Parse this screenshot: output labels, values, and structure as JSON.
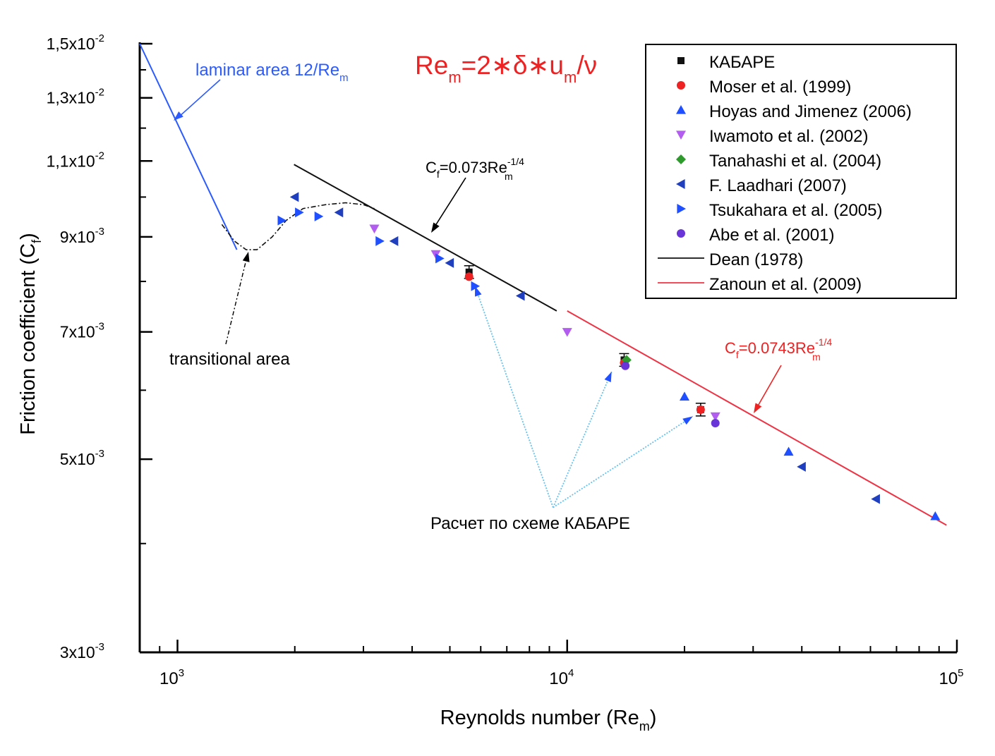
{
  "chart_data": {
    "type": "scatter",
    "x_scale": "log",
    "y_scale": "log",
    "xlim": [
      800,
      100000
    ],
    "ylim": [
      0.003,
      0.015
    ],
    "xlabel": "Reynolds number (Re_m)",
    "ylabel": "Friction coefficient (C_f)",
    "x_ticks": [
      {
        "value": 1000,
        "base": "10",
        "exp": "3"
      },
      {
        "value": 10000,
        "base": "10",
        "exp": "4"
      },
      {
        "value": 100000,
        "base": "10",
        "exp": "5"
      }
    ],
    "y_ticks": [
      {
        "value": 0.015,
        "mant": "1,5x10",
        "exp": "-2"
      },
      {
        "value": 0.013,
        "mant": "1,3x10",
        "exp": "-2"
      },
      {
        "value": 0.011,
        "mant": "1,1x10",
        "exp": "-2"
      },
      {
        "value": 0.009,
        "mant": "9x10",
        "exp": "-3"
      },
      {
        "value": 0.007,
        "mant": "7x10",
        "exp": "-3"
      },
      {
        "value": 0.005,
        "mant": "5x10",
        "exp": "-3"
      },
      {
        "value": 0.003,
        "mant": "3x10",
        "exp": "-3"
      }
    ],
    "y_minor_ticks": [
      0.004,
      0.006,
      0.008,
      0.01,
      0.012,
      0.014
    ],
    "legend_position": "top-right",
    "legend": [
      {
        "label": "КАБАРЕ",
        "marker": "square",
        "color": "#111111"
      },
      {
        "label": "Moser et al. (1999)",
        "marker": "circle",
        "color": "#ee2222"
      },
      {
        "label": "Hoyas and Jimenez (2006)",
        "marker": "triangle-up",
        "color": "#1f4fff"
      },
      {
        "label": "Iwamoto et al. (2002)",
        "marker": "triangle-down",
        "color": "#b25cf0"
      },
      {
        "label": "Tanahashi et al. (2004)",
        "marker": "diamond",
        "color": "#2e9a2e"
      },
      {
        "label": "F. Laadhari (2007)",
        "marker": "triangle-left",
        "color": "#1f3fbf"
      },
      {
        "label": "Tsukahara et al. (2005)",
        "marker": "triangle-right",
        "color": "#1f4fff"
      },
      {
        "label": "Abe et al. (2001)",
        "marker": "circle",
        "color": "#6a35d8"
      },
      {
        "label": "Dean (1978)",
        "marker": "line",
        "color": "#111111"
      },
      {
        "label": "Zanoun et al. (2009)",
        "marker": "line",
        "color": "#ee3344"
      }
    ],
    "series": [
      {
        "name": "КАБАРЕ",
        "marker": "square",
        "color": "#111111",
        "error_bars": true,
        "points": [
          [
            5600,
            0.0082
          ],
          [
            14000,
            0.0065
          ],
          [
            22000,
            0.0057
          ]
        ]
      },
      {
        "name": "Moser et al. (1999)",
        "marker": "circle",
        "color": "#ee2222",
        "points": [
          [
            5600,
            0.0081
          ],
          [
            14000,
            0.00645
          ],
          [
            22000,
            0.0057
          ]
        ]
      },
      {
        "name": "Hoyas and Jimenez (2006)",
        "marker": "triangle-up",
        "color": "#1f4fff",
        "points": [
          [
            20000,
            0.0059
          ],
          [
            37000,
            0.0051
          ],
          [
            88000,
            0.0043
          ]
        ]
      },
      {
        "name": "Iwamoto et al. (2002)",
        "marker": "triangle-down",
        "color": "#b25cf0",
        "points": [
          [
            3200,
            0.0092
          ],
          [
            4600,
            0.0086
          ],
          [
            10000,
            0.007
          ],
          [
            24000,
            0.0056
          ]
        ]
      },
      {
        "name": "Tanahashi et al. (2004)",
        "marker": "diamond",
        "color": "#2e9a2e",
        "points": [
          [
            14200,
            0.0065
          ]
        ]
      },
      {
        "name": "F. Laadhari (2007)",
        "marker": "triangle-left",
        "color": "#1f3fbf",
        "points": [
          [
            2000,
            0.01
          ],
          [
            2600,
            0.0096
          ],
          [
            3600,
            0.0089
          ],
          [
            5000,
            0.0084
          ],
          [
            7600,
            0.0077
          ],
          [
            40000,
            0.0049
          ],
          [
            62000,
            0.0045
          ]
        ]
      },
      {
        "name": "Tsukahara et al. (2005)",
        "marker": "triangle-right",
        "color": "#1f4fff",
        "points": [
          [
            1850,
            0.0094
          ],
          [
            2050,
            0.0096
          ],
          [
            2300,
            0.0095
          ],
          [
            3300,
            0.0089
          ],
          [
            4700,
            0.0085
          ],
          [
            5800,
            0.0079
          ]
        ]
      },
      {
        "name": "Abe et al. (2001)",
        "marker": "circle",
        "color": "#6a35d8",
        "points": [
          [
            14100,
            0.0064
          ],
          [
            24000,
            0.0055
          ]
        ]
      },
      {
        "name": "Dean (1978)",
        "type": "line",
        "color": "#111111",
        "points": [
          [
            1990,
            0.0109
          ],
          [
            9400,
            0.0074
          ]
        ]
      },
      {
        "name": "Zanoun et al. (2009)",
        "type": "line",
        "color": "#ee3344",
        "points": [
          [
            10000,
            0.0074
          ],
          [
            94000,
            0.0042
          ]
        ]
      }
    ],
    "laminar_line": {
      "color": "#2b5bff",
      "points": [
        [
          800,
          0.015
        ],
        [
          1420,
          0.0087
        ]
      ]
    },
    "transitional_curve": {
      "color": "#111111",
      "points": [
        [
          1300,
          0.0093
        ],
        [
          1400,
          0.0089
        ],
        [
          1500,
          0.0087
        ],
        [
          1600,
          0.0087
        ],
        [
          1750,
          0.009
        ],
        [
          1900,
          0.0094
        ],
        [
          2100,
          0.0097
        ],
        [
          2400,
          0.0098
        ],
        [
          2700,
          0.00985
        ],
        [
          3000,
          0.0098
        ],
        [
          3200,
          0.0097
        ]
      ]
    },
    "kabare_pointer": {
      "color": "#66c2ee",
      "apex": [
        9200,
        0.0044
      ],
      "targets": [
        [
          5800,
          0.0079
        ],
        [
          13000,
          0.0063
        ],
        [
          21000,
          0.0056
        ]
      ]
    },
    "annotations": {
      "laminar": {
        "pre": "laminar area 12/Re",
        "sub": "m"
      },
      "definition": {
        "pre": "Re",
        "sub1": "m",
        "mid": "=2∗δ∗u",
        "sub2": "m",
        "post": "/ν"
      },
      "dean_formula": {
        "pre": "C",
        "sub": "f",
        "mid": "=0.073Re",
        "sup": "-1/4",
        "sub2": "m"
      },
      "zanoun_formula": {
        "pre": "C",
        "sub": "f",
        "mid": "=0.0743Re",
        "sup": "-1/4",
        "sub2": "m"
      },
      "transitional": "transitional area",
      "kabare_calc": "Расчет по схеме КАБАРЕ"
    },
    "axis_text": {
      "xlabel_pre": "Reynolds number (Re",
      "xlabel_sub": "m",
      "xlabel_post": ")",
      "ylabel_pre": "Friction coefficient (C",
      "ylabel_sub": "f",
      "ylabel_post": ")"
    }
  }
}
